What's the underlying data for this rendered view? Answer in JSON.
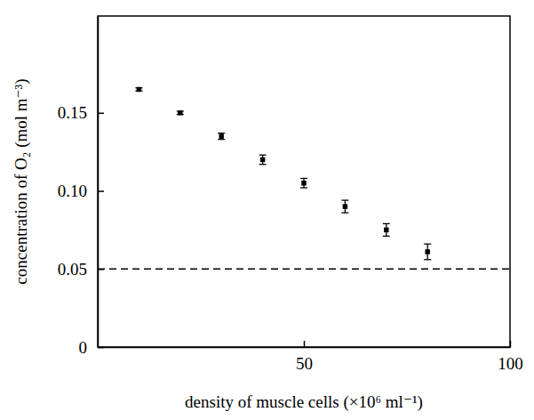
{
  "chart_data": {
    "type": "scatter",
    "x_label": "density of muscle cells (×10⁶ ml⁻¹)",
    "y_label": "concentration of O₂ (mol m⁻³)",
    "x": [
      10,
      20,
      30,
      40,
      50,
      60,
      70,
      80
    ],
    "y": [
      0.165,
      0.15,
      0.135,
      0.12,
      0.105,
      0.09,
      0.075,
      0.061
    ],
    "errors": [
      0.001,
      0.001,
      0.002,
      0.003,
      0.003,
      0.004,
      0.004,
      0.005
    ],
    "color": "#000000",
    "marker": "square",
    "xlim": [
      0,
      100
    ],
    "xticks": [
      50,
      100
    ],
    "ylim": [
      0,
      0.212
    ],
    "yticks": [
      0,
      0.05,
      {
        "value": 0.1,
        "label": "0.10"
      },
      0.15
    ],
    "hline": 0.05
  }
}
